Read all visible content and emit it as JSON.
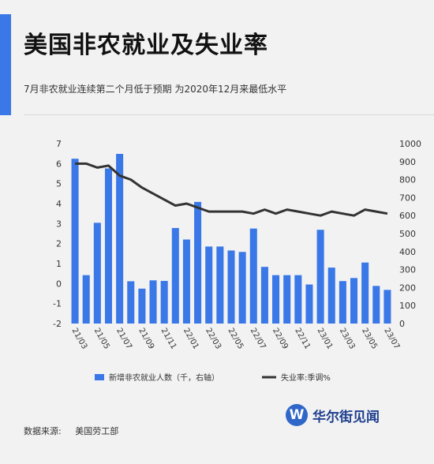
{
  "header": {
    "title": "美国非农就业及失业率",
    "subtitle": "7月非农就业连续第二个月低于预期  为2020年12月来最低水平"
  },
  "footer": {
    "source_label": "数据来源:",
    "source_value": "美国劳工部",
    "brand": "华尔街见闻",
    "brand_mark": "W"
  },
  "colors": {
    "accent": "#3a78e8",
    "bar": "#3a78e8",
    "line": "#333333"
  },
  "chart_data": {
    "type": "bar",
    "x": [
      "21/03",
      "21/04",
      "21/05",
      "21/06",
      "21/07",
      "21/08",
      "21/09",
      "21/10",
      "21/11",
      "21/12",
      "22/01",
      "22/02",
      "22/03",
      "22/04",
      "22/05",
      "22/06",
      "22/07",
      "22/08",
      "22/09",
      "22/10",
      "22/11",
      "22/12",
      "23/01",
      "23/02",
      "23/03",
      "23/04",
      "23/05",
      "23/06",
      "23/07"
    ],
    "x_tick_labels": [
      "21/03",
      "21/05",
      "21/07",
      "21/09",
      "21/11",
      "22/01",
      "22/03",
      "22/05",
      "22/07",
      "22/09",
      "22/11",
      "23/01",
      "23/03",
      "23/05",
      "23/07"
    ],
    "series": [
      {
        "name": "新增非农就业人数（千，右轴）",
        "type": "bar",
        "axis": "right",
        "values": [
          916,
          269,
          560,
          862,
          943,
          235,
          194,
          240,
          237,
          531,
          467,
          676,
          428,
          428,
          406,
          398,
          528,
          315,
          269,
          269,
          269,
          217,
          521,
          311,
          236,
          253,
          339,
          209,
          187
        ]
      },
      {
        "name": "失业率:季调%",
        "type": "line",
        "axis": "left",
        "values": [
          6.0,
          6.0,
          5.8,
          5.9,
          5.4,
          5.2,
          4.8,
          4.5,
          4.2,
          3.9,
          4.0,
          3.8,
          3.6,
          3.6,
          3.6,
          3.6,
          3.5,
          3.7,
          3.5,
          3.7,
          3.6,
          3.5,
          3.4,
          3.6,
          3.5,
          3.4,
          3.7,
          3.6,
          3.5
        ]
      }
    ],
    "y_left": {
      "range": [
        -2,
        7
      ],
      "ticks": [
        "-2",
        "-1",
        "0",
        "1",
        "2",
        "3",
        "4",
        "5",
        "6",
        "7"
      ]
    },
    "y_right": {
      "range": [
        0,
        1000
      ],
      "ticks": [
        "0",
        "100",
        "200",
        "300",
        "400",
        "500",
        "600",
        "700",
        "800",
        "900",
        "1000"
      ]
    },
    "legend_position": "bottom",
    "grid": false
  }
}
